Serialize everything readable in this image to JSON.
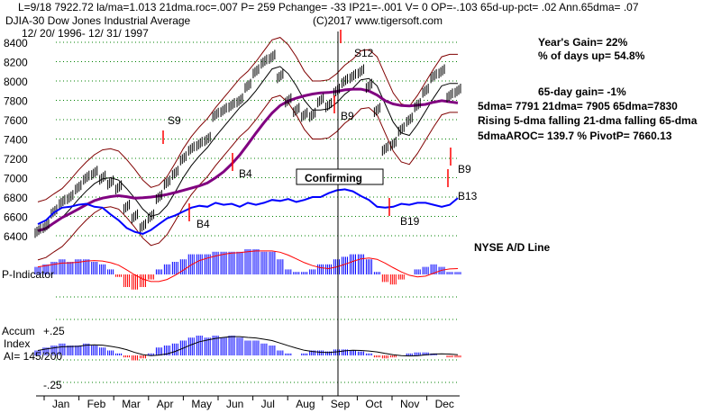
{
  "header": {
    "stats": "L=9/18  7922.72  la/ma=1.013 21dma.roc=.007 P=  259 Pchange= -33 IP21=-.001 V= 0 OP=-.103 65d-up-pct= .02 Ann.65dma= .07",
    "title": "DJIA-30  Dow Jones Industrial Average",
    "dates": "12/ 20/ 1996- 12/ 31/ 1997",
    "copyright": "(C)2017 www.tigersoft.com"
  },
  "info": {
    "gain": "Year's Gain= 22%",
    "days_up": "% of days up= 54.8%",
    "gain65": "65-day gain= -1%",
    "dmas": "5dma= 7791 21dma= 7905 65dma=7830",
    "trend": "Rising 5-dma  falling 21-dma  falling 65-dma",
    "aroc": "5dmaAROC= 139.7 %  PivotP= 7660.13",
    "ad_label": "NYSE A/D Line"
  },
  "panels": {
    "p_indicator": "P-Indicator",
    "accum1": "Accum",
    "accum2": "Index",
    "accum3": "AI= 145/200",
    "plus": "+.25",
    "minus": "-.25"
  },
  "confirming": "Confirming",
  "signals": [
    {
      "label": "S9",
      "color": "#ff0000"
    },
    {
      "label": "S12",
      "color": "#ff0000"
    },
    {
      "label": "B9",
      "color": "#ff0000"
    },
    {
      "label": "B4",
      "color": "#ff0000"
    },
    {
      "label": "B4",
      "color": "#ff0000"
    },
    {
      "label": "B19",
      "color": "#ff0000"
    },
    {
      "label": "B9",
      "color": "#ff0000"
    },
    {
      "label": "B13",
      "color": "#ff0000"
    }
  ],
  "chart_data": {
    "type": "line",
    "title": "DJIA-30 Dow Jones Industrial Average",
    "months": [
      "Jan",
      "Feb",
      "Mar",
      "Apr",
      "May",
      "Jun",
      "Jul",
      "Aug",
      "Sep",
      "Oct",
      "Nov",
      "Dec"
    ],
    "yticks": [
      6400,
      6600,
      6800,
      7000,
      7200,
      7400,
      7600,
      7800,
      8000,
      8200,
      8400
    ],
    "ylim": [
      6400,
      8400
    ],
    "close": [
      6450,
      6500,
      6650,
      6750,
      6800,
      6900,
      7000,
      7050,
      7000,
      6950,
      6900,
      6700,
      6600,
      6500,
      6600,
      6800,
      6950,
      7050,
      7200,
      7300,
      7350,
      7400,
      7650,
      7700,
      7750,
      7800,
      7950,
      8100,
      8200,
      8250,
      8050,
      7800,
      7700,
      7650,
      7650,
      7800,
      7750,
      7900,
      8000,
      8050,
      8100,
      7950,
      7700,
      7300,
      7350,
      7500,
      7600,
      7750,
      7900,
      8050,
      8100,
      7850,
      7900
    ],
    "ad": [
      6520,
      6560,
      6640,
      6690,
      6700,
      6720,
      6730,
      6700,
      6690,
      6620,
      6560,
      6480,
      6440,
      6420,
      6460,
      6520,
      6580,
      6610,
      6650,
      6690,
      6710,
      6700,
      6740,
      6720,
      6730,
      6700,
      6740,
      6720,
      6740,
      6770,
      6760,
      6780,
      6750,
      6770,
      6800,
      6800,
      6840,
      6870,
      6880,
      6860,
      6810,
      6770,
      6700,
      6690,
      6700,
      6730,
      6720,
      6740,
      6740,
      6720,
      6700,
      6720,
      6790
    ],
    "p_indicator": [
      0.3,
      0.4,
      0.5,
      0.6,
      0.5,
      0.6,
      0.6,
      0.5,
      0.4,
      0.2,
      -0.1,
      -0.5,
      -0.6,
      -0.5,
      -0.2,
      0.2,
      0.4,
      0.5,
      0.6,
      0.8,
      0.8,
      0.8,
      0.9,
      0.9,
      0.9,
      0.9,
      1,
      1,
      0.9,
      0.9,
      0.6,
      0.2,
      0.1,
      0.1,
      0.2,
      0.4,
      0.4,
      0.6,
      0.7,
      0.8,
      0.8,
      0.6,
      0.1,
      -0.3,
      -0.4,
      -0.2,
      0,
      0.2,
      0.3,
      0.4,
      0.3,
      0.1,
      0.1
    ],
    "accum": [
      0.05,
      0.08,
      0.1,
      0.12,
      0.1,
      0.1,
      0.12,
      0.1,
      0.08,
      0.05,
      0.02,
      -0.02,
      -0.05,
      -0.03,
      0.02,
      0.08,
      0.1,
      0.12,
      0.15,
      0.18,
      0.2,
      0.18,
      0.2,
      0.18,
      0.2,
      0.18,
      0.15,
      0.15,
      0.12,
      0.1,
      0.05,
      0.02,
      0.0,
      0.02,
      0.05,
      0.05,
      0.04,
      0.06,
      0.06,
      0.05,
      0.04,
      0.02,
      -0.02,
      -0.03,
      -0.02,
      0.0,
      0.02,
      0.03,
      0.03,
      0.02,
      0.0,
      -0.02,
      -0.02
    ]
  }
}
